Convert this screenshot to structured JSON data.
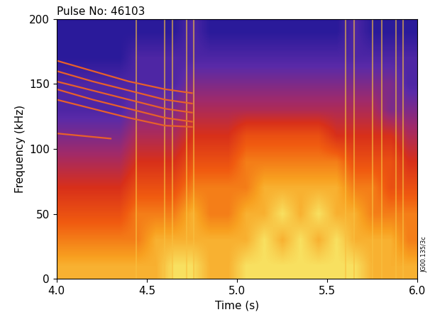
{
  "chart_data": {
    "type": "heatmap",
    "title": "Pulse No: 46103",
    "x_label": "Time (s)",
    "y_label": "Frequency (kHz)",
    "annotation": "JG00.135/3c",
    "xlim": [
      4.0,
      6.0
    ],
    "ylim": [
      0,
      200
    ],
    "xticks": [
      4.0,
      4.5,
      5.0,
      5.5,
      6.0
    ],
    "yticks": [
      0,
      50,
      100,
      150,
      200
    ],
    "x_bins": [
      4.0,
      4.1,
      4.2,
      4.3,
      4.4,
      4.5,
      4.6,
      4.7,
      4.8,
      4.9,
      5.0,
      5.1,
      5.2,
      5.3,
      5.4,
      5.5,
      5.6,
      5.7,
      5.8,
      5.9,
      6.0
    ],
    "y_bins": [
      0,
      20,
      40,
      60,
      80,
      100,
      120,
      140,
      160,
      180,
      200
    ],
    "cells": [
      [
        7,
        7,
        7,
        7,
        7,
        7,
        8,
        8,
        7,
        7,
        8,
        8,
        8,
        8,
        8,
        8,
        8,
        7,
        7,
        7
      ],
      [
        6,
        6,
        6,
        6,
        6,
        7,
        7,
        7,
        7,
        7,
        7,
        8,
        7,
        8,
        7,
        8,
        7,
        7,
        7,
        6
      ],
      [
        5,
        5,
        5,
        5,
        6,
        6,
        6,
        7,
        6,
        6,
        7,
        7,
        8,
        7,
        8,
        7,
        7,
        6,
        6,
        6
      ],
      [
        4,
        4,
        4,
        4,
        5,
        5,
        5,
        6,
        6,
        6,
        6,
        7,
        7,
        7,
        7,
        7,
        6,
        6,
        5,
        5
      ],
      [
        3,
        3,
        3,
        3,
        4,
        4,
        4,
        5,
        5,
        5,
        6,
        6,
        6,
        6,
        6,
        6,
        5,
        5,
        5,
        4
      ],
      [
        2,
        2,
        2,
        2,
        3,
        3,
        3,
        4,
        4,
        4,
        5,
        5,
        5,
        5,
        5,
        4,
        4,
        4,
        4,
        3
      ],
      [
        1,
        1,
        1,
        1,
        2,
        2,
        2,
        3,
        3,
        3,
        3,
        3,
        3,
        3,
        3,
        3,
        3,
        3,
        2,
        2
      ],
      [
        1,
        1,
        1,
        1,
        1,
        1,
        1,
        2,
        2,
        2,
        2,
        2,
        2,
        2,
        2,
        2,
        2,
        2,
        2,
        1
      ],
      [
        0,
        0,
        0,
        0,
        1,
        1,
        1,
        1,
        1,
        1,
        1,
        1,
        1,
        1,
        1,
        1,
        1,
        1,
        1,
        1
      ],
      [
        0,
        0,
        0,
        0,
        0,
        0,
        0,
        1,
        0,
        0,
        0,
        0,
        0,
        0,
        0,
        0,
        1,
        0,
        0,
        0
      ]
    ],
    "series": [
      {
        "color": "#e8602a",
        "x": [
          4.0,
          4.2,
          4.4,
          4.6,
          4.75
        ],
        "values": [
          168,
          160,
          152,
          146,
          143
        ]
      },
      {
        "color": "#e8602a",
        "x": [
          4.0,
          4.2,
          4.4,
          4.6,
          4.75
        ],
        "values": [
          160,
          152,
          145,
          138,
          135
        ]
      },
      {
        "color": "#e8602a",
        "x": [
          4.0,
          4.2,
          4.4,
          4.6,
          4.75
        ],
        "values": [
          152,
          145,
          138,
          131,
          128
        ]
      },
      {
        "color": "#e8602a",
        "x": [
          4.0,
          4.2,
          4.4,
          4.6,
          4.75
        ],
        "values": [
          146,
          138,
          131,
          124,
          121
        ]
      },
      {
        "color": "#e8602a",
        "x": [
          4.0,
          4.2,
          4.4,
          4.6,
          4.75
        ],
        "values": [
          138,
          131,
          124,
          118,
          117
        ]
      },
      {
        "color": "#e8602a",
        "x": [
          4.0,
          4.15,
          4.3
        ],
        "values": [
          112,
          110,
          108
        ]
      }
    ],
    "spikes": [
      4.44,
      4.6,
      4.64,
      4.72,
      4.76,
      5.6,
      5.65,
      5.75,
      5.8,
      5.88,
      5.92
    ]
  }
}
